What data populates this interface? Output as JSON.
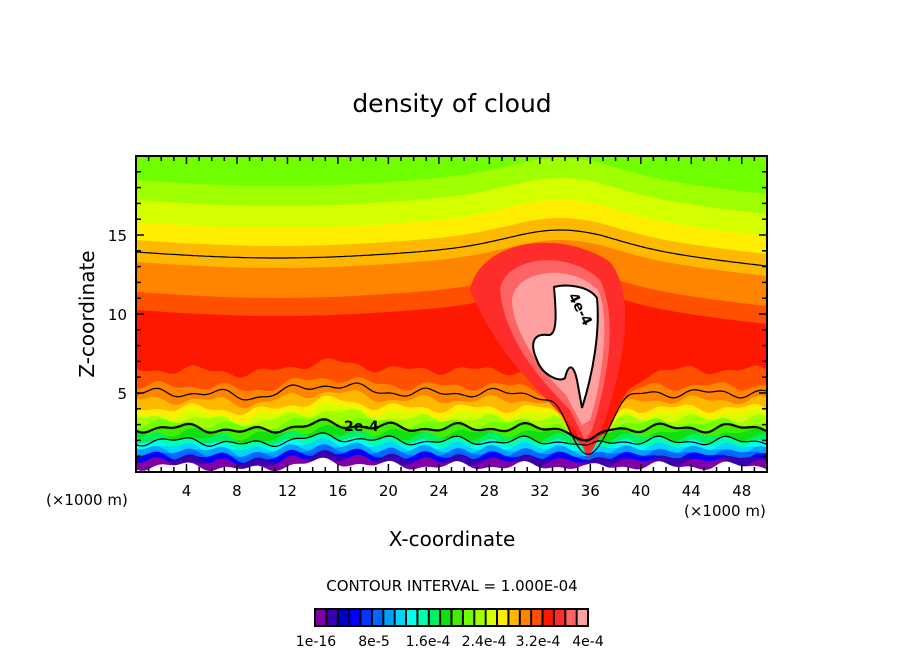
{
  "chart_data": {
    "type": "heatmap",
    "subtype": "filled-contour",
    "title": "density of cloud",
    "xlabel": "X-coordinate",
    "ylabel": "Z-coordinate",
    "x_unit_label": "(×1000 m)",
    "y_unit_label": "(×1000 m)",
    "xlim": [
      0,
      50
    ],
    "ylim": [
      0,
      20
    ],
    "x_ticks": [
      4,
      8,
      12,
      16,
      20,
      24,
      28,
      32,
      36,
      40,
      44,
      48
    ],
    "x_tick_labels": [
      "4",
      "8",
      "12",
      "16",
      "20",
      "24",
      "28",
      "32",
      "36",
      "40",
      "44",
      "48"
    ],
    "y_ticks": [
      5,
      10,
      15
    ],
    "y_tick_labels": [
      "5",
      "10",
      "15"
    ],
    "contour_interval_text": "CONTOUR INTERVAL = 1.000E-04",
    "contour_interval": 0.0001,
    "contour_line_labels": [
      {
        "text": "2e-4",
        "value": 0.0002,
        "x": 17.5,
        "y": 2.8
      },
      {
        "text": "4e-4",
        "value": 0.0004,
        "x": 34.5,
        "y": 10.5
      }
    ],
    "colorbar": {
      "min": 1e-16,
      "max": 0.0004,
      "labels": [
        "1e-16",
        "8e-5",
        "1.6e-4",
        "2.4e-4",
        "3.2e-4",
        "4e-4"
      ],
      "colors": [
        "#8000a8",
        "#3a00b0",
        "#0000c8",
        "#0000ff",
        "#0038ff",
        "#0068ff",
        "#00a0ff",
        "#00d4ff",
        "#00ffee",
        "#00ffb0",
        "#00f060",
        "#10e010",
        "#40f000",
        "#70ff00",
        "#a0ff00",
        "#d4ff00",
        "#ffee00",
        "#ffb800",
        "#ff8400",
        "#ff5000",
        "#ff1800",
        "#ff2c2c",
        "#ff6464",
        "#ffa0a0"
      ]
    },
    "features": [
      "max density (>4e-4) cell near x=33-36, z=4-12",
      "high density layer (red) between z~6 and z~11",
      "low density at surface (z<1.5) and top (z>18)"
    ]
  }
}
